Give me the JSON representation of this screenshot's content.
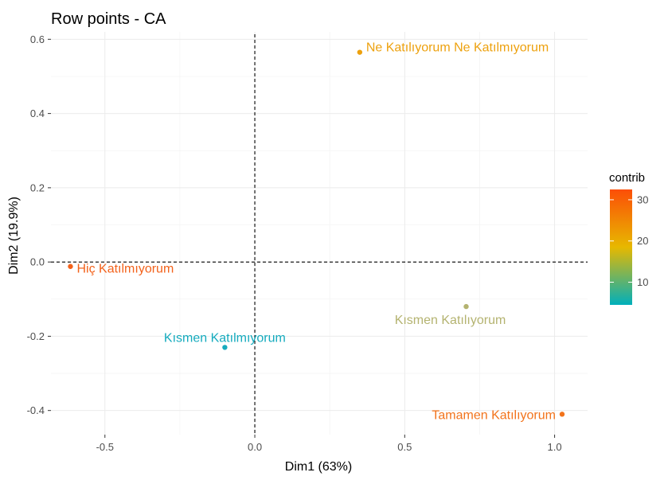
{
  "chart_data": {
    "type": "scatter",
    "title": "Row points - CA",
    "xlabel": "Dim1 (63%)",
    "ylabel": "Dim2 (19.9%)",
    "xlim": [
      -0.68,
      1.11
    ],
    "ylim": [
      -0.465,
      0.62
    ],
    "x_ticks": [
      -0.5,
      0.0,
      0.5,
      1.0
    ],
    "x_tick_labels": [
      "-0.5",
      "0.0",
      "0.5",
      "1.0"
    ],
    "y_ticks": [
      -0.4,
      -0.2,
      0.0,
      0.2,
      0.4,
      0.6
    ],
    "y_tick_labels": [
      "-0.4",
      "-0.2",
      "0.0",
      "0.2",
      "0.4",
      "0.6"
    ],
    "grid": true,
    "reference_lines": {
      "x": 0,
      "y": 0,
      "style": "dashed"
    },
    "legend": {
      "title": "contrib",
      "placement": "right",
      "type": "gradient",
      "range": [
        4.5,
        32.5
      ],
      "ticks": [
        10,
        20,
        30
      ],
      "tick_labels": [
        "10",
        "20",
        "30"
      ],
      "colors": [
        "#00AFBB",
        "#E7B800",
        "#FC4E07"
      ]
    },
    "points": [
      {
        "label": "Ne Katılıyorum Ne Katılmıyorum",
        "x": 0.35,
        "y": 0.565,
        "contrib": 21.5,
        "color": "#eda10e",
        "label_anchor": "right"
      },
      {
        "label": "Hiç Katılmıyorum",
        "x": -0.615,
        "y": -0.012,
        "contrib": 29.0,
        "color": "#f3621b",
        "label_anchor": "right"
      },
      {
        "label": "Kısmen Katılıyorum",
        "x": 0.705,
        "y": -0.12,
        "contrib": 10.0,
        "color": "#b4b370",
        "label_anchor": "below"
      },
      {
        "label": "Kısmen Katılmıyorum",
        "x": -0.1,
        "y": -0.23,
        "contrib": 4.5,
        "color": "#15abbe",
        "label_anchor": "above"
      },
      {
        "label": "Tamamen Katılıyorum",
        "x": 1.025,
        "y": -0.41,
        "contrib": 26.5,
        "color": "#f2731b",
        "label_anchor": "left"
      }
    ]
  }
}
